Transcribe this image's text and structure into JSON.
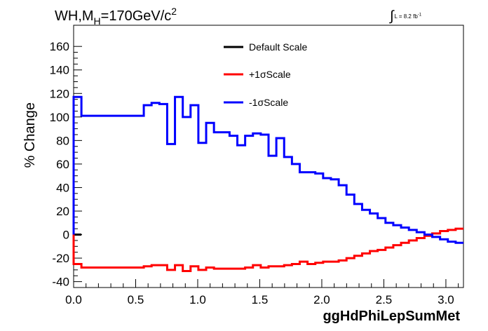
{
  "chart_data": {
    "type": "line",
    "title_main": "WH,M",
    "title_sub": "H",
    "title_rest": "=170GeV/c",
    "title_sup": "2",
    "lumi_text": "L = 8.2 fb",
    "lumi_sup": "-1",
    "xlabel": "ggHdPhiLepSumMet",
    "ylabel": "% Change",
    "xlim": [
      0.0,
      3.1416
    ],
    "ylim": [
      -45,
      178
    ],
    "xticks": [
      "0.0",
      "0.5",
      "1.0",
      "1.5",
      "2.0",
      "2.5",
      "3.0"
    ],
    "yticks": [
      "-40",
      "-20",
      "0",
      "20",
      "40",
      "60",
      "80",
      "100",
      "120",
      "140",
      "160"
    ],
    "legend_position": "top-center",
    "grid": false,
    "series": [
      {
        "name": "Default Scale",
        "color": "#000000",
        "edges": [
          0.0,
          0.0628
        ],
        "values": [
          0
        ]
      },
      {
        "name": "+1σScale",
        "color": "#ff0000",
        "edges": [
          0.0,
          0.0628,
          0.5655,
          0.6283,
          0.6911,
          0.754,
          0.8168,
          0.8796,
          0.9425,
          1.0053,
          1.0681,
          1.131,
          1.1938,
          1.2566,
          1.3195,
          1.3823,
          1.4451,
          1.508,
          1.5708,
          1.6336,
          1.6965,
          1.7593,
          1.8221,
          1.885,
          1.9478,
          2.0106,
          2.0735,
          2.1363,
          2.1991,
          2.2619,
          2.3248,
          2.3876,
          2.4504,
          2.5133,
          2.5761,
          2.6389,
          2.7018,
          2.7646,
          2.8274,
          2.8903,
          2.9531,
          3.0159,
          3.0788,
          3.1416
        ],
        "values": [
          -25,
          -28,
          -27,
          -26,
          -26,
          -30,
          -26,
          -31,
          -27,
          -30,
          -28,
          -29,
          -29,
          -29,
          -29,
          -28,
          -26,
          -28,
          -27,
          -27,
          -26,
          -25,
          -23,
          -25,
          -24,
          -23,
          -23,
          -22,
          -20,
          -18,
          -16,
          -14,
          -13,
          -11,
          -9,
          -7,
          -5,
          -3,
          -1,
          1,
          3,
          4,
          5
        ]
      },
      {
        "name": "-1σScale",
        "color": "#0000ff",
        "edges": [
          0.0,
          0.0628,
          0.5655,
          0.6283,
          0.6911,
          0.754,
          0.8168,
          0.8796,
          0.9425,
          1.0053,
          1.0681,
          1.131,
          1.1938,
          1.2566,
          1.3195,
          1.3823,
          1.4451,
          1.508,
          1.5708,
          1.6336,
          1.6965,
          1.7593,
          1.8221,
          1.885,
          1.9478,
          2.0106,
          2.0735,
          2.1363,
          2.1991,
          2.2619,
          2.3248,
          2.3876,
          2.4504,
          2.5133,
          2.5761,
          2.6389,
          2.7018,
          2.7646,
          2.8274,
          2.8903,
          2.9531,
          3.0159,
          3.0788,
          3.1416
        ],
        "values": [
          117,
          101,
          110,
          112,
          111,
          77,
          117,
          100,
          110,
          78,
          95,
          87,
          87,
          84,
          76,
          84,
          86,
          85,
          67,
          82,
          66,
          60,
          53,
          53,
          52,
          48,
          47,
          42,
          34,
          26,
          21,
          18,
          14,
          10,
          8,
          6,
          4,
          2,
          0,
          -2,
          -4,
          -6,
          -7
        ]
      }
    ]
  }
}
